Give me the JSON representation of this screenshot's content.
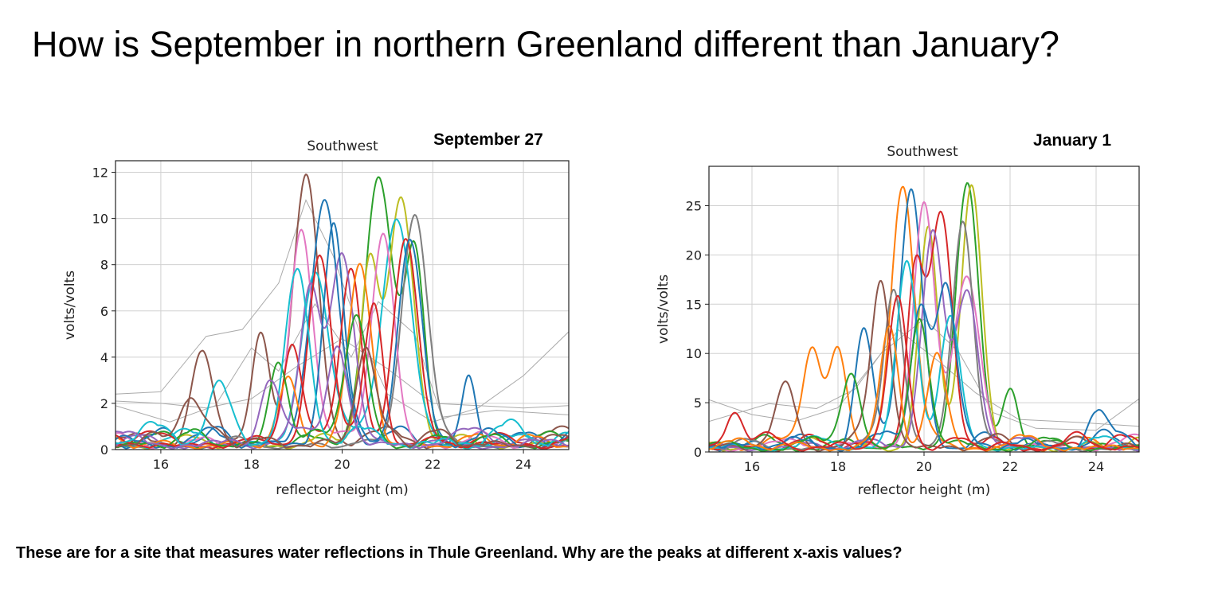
{
  "page": {
    "title": "How is September in northern Greenland different than January?",
    "footer": "These are for a site that measures water reflections in  Thule Greenland. Why are the peaks at different x-axis values?"
  },
  "palette": [
    "#1f77b4",
    "#ff7f0e",
    "#2ca02c",
    "#d62728",
    "#9467bd",
    "#8c564b",
    "#e377c2",
    "#7f7f7f",
    "#bcbd22",
    "#17becf"
  ],
  "chart_data": [
    {
      "type": "line",
      "title": "Southwest",
      "date_label": "September 27",
      "xlabel": "reflector height (m)",
      "ylabel": "volts/volts",
      "xlim": [
        15,
        25
      ],
      "ylim": [
        0,
        12.5
      ],
      "xticks": [
        16,
        18,
        20,
        22,
        24
      ],
      "yticks": [
        0,
        2,
        4,
        6,
        8,
        10,
        12
      ],
      "grid": true,
      "series": [
        {
          "color": "#8c564b",
          "peaks": [
            [
              19.2,
              11.5,
              0.28
            ],
            [
              18.2,
              4.9,
              0.2
            ],
            [
              16.9,
              3.6,
              0.22
            ]
          ],
          "base": 0.9
        },
        {
          "color": "#2ca02c",
          "peaks": [
            [
              20.8,
              11.5,
              0.3
            ],
            [
              21.6,
              8.2,
              0.22
            ]
          ],
          "base": 0.7
        },
        {
          "color": "#bcbd22",
          "peaks": [
            [
              21.3,
              10.7,
              0.28
            ],
            [
              20.6,
              7.8,
              0.2
            ]
          ],
          "base": 0.6
        },
        {
          "color": "#1f77b4",
          "peaks": [
            [
              19.6,
              10.4,
              0.3
            ],
            [
              22.8,
              3.0,
              0.15
            ]
          ],
          "base": 1.0
        },
        {
          "color": "#7f7f7f",
          "peaks": [
            [
              21.6,
              10.1,
              0.28
            ]
          ],
          "base": 0.5
        },
        {
          "color": "#17becf",
          "peaks": [
            [
              21.2,
              9.8,
              0.32
            ],
            [
              19.4,
              7.5,
              0.3
            ]
          ],
          "base": 0.8
        },
        {
          "color": "#e377c2",
          "peaks": [
            [
              19.1,
              9.4,
              0.25
            ],
            [
              20.9,
              9.2,
              0.25
            ]
          ],
          "base": 0.7
        },
        {
          "color": "#d62728",
          "peaks": [
            [
              21.4,
              8.9,
              0.26
            ],
            [
              20.2,
              7.6,
              0.22
            ],
            [
              18.9,
              4.4,
              0.2
            ]
          ],
          "base": 0.8
        },
        {
          "color": "#9467bd",
          "peaks": [
            [
              20.0,
              8.4,
              0.26
            ],
            [
              19.3,
              6.6,
              0.22
            ]
          ],
          "base": 0.6
        },
        {
          "color": "#ff7f0e",
          "peaks": [
            [
              20.4,
              7.7,
              0.25
            ],
            [
              18.8,
              2.4,
              0.2
            ]
          ],
          "base": 0.7
        },
        {
          "color": "#1f77b4",
          "peaks": [
            [
              19.8,
              9.2,
              0.22
            ],
            [
              21.5,
              8.9,
              0.26
            ]
          ],
          "base": 0.9
        },
        {
          "color": "#2ca02c",
          "peaks": [
            [
              18.6,
              3.7,
              0.2
            ],
            [
              20.3,
              5.5,
              0.25
            ]
          ],
          "base": 0.8
        },
        {
          "color": "#d62728",
          "peaks": [
            [
              19.5,
              8.2,
              0.24
            ],
            [
              20.7,
              6.2,
              0.2
            ]
          ],
          "base": 0.7
        },
        {
          "color": "#17becf",
          "peaks": [
            [
              19.0,
              6.8,
              0.25
            ],
            [
              17.3,
              2.6,
              0.25
            ]
          ],
          "base": 1.2
        },
        {
          "color": "#9467bd",
          "peaks": [
            [
              19.9,
              4.3,
              0.22
            ],
            [
              18.4,
              2.7,
              0.2
            ]
          ],
          "base": 0.9
        },
        {
          "color": "#8c564b",
          "peaks": [
            [
              20.5,
              4.0,
              0.2
            ],
            [
              16.6,
              1.9,
              0.2
            ]
          ],
          "base": 1.0
        }
      ],
      "thin_series": [
        {
          "color": "#aaaaaa",
          "points": [
            [
              15.0,
              2.4
            ],
            [
              16.0,
              2.5
            ],
            [
              17.0,
              4.9
            ],
            [
              17.8,
              5.2
            ],
            [
              18.6,
              7.2
            ],
            [
              19.2,
              10.8
            ],
            [
              19.8,
              8.4
            ],
            [
              20.4,
              5.0
            ],
            [
              21.0,
              2.4
            ],
            [
              22.0,
              1.2
            ],
            [
              23.0,
              1.8
            ],
            [
              24.0,
              3.2
            ],
            [
              25.0,
              5.1
            ]
          ]
        },
        {
          "color": "#aaaaaa",
          "points": [
            [
              15.0,
              2.1
            ],
            [
              16.0,
              2.0
            ],
            [
              17.0,
              1.8
            ],
            [
              18.0,
              2.2
            ],
            [
              19.0,
              3.6
            ],
            [
              20.0,
              4.8
            ],
            [
              21.0,
              3.5
            ],
            [
              22.0,
              2.0
            ],
            [
              23.0,
              1.9
            ],
            [
              24.0,
              1.8
            ],
            [
              25.0,
              1.9
            ]
          ]
        },
        {
          "color": "#aaaaaa",
          "points": [
            [
              15.0,
              1.9
            ],
            [
              16.2,
              1.2
            ],
            [
              17.2,
              1.9
            ],
            [
              18.0,
              4.4
            ],
            [
              18.6,
              3.4
            ],
            [
              19.4,
              6.3
            ],
            [
              20.2,
              4.0
            ],
            [
              20.8,
              6.4
            ],
            [
              21.6,
              5.0
            ],
            [
              22.2,
              1.4
            ],
            [
              23.4,
              1.7
            ],
            [
              25.0,
              1.5
            ]
          ]
        }
      ]
    },
    {
      "type": "line",
      "title": "Southwest",
      "date_label": "January 1",
      "xlabel": "reflector height (m)",
      "ylabel": "volts/volts",
      "xlim": [
        15,
        25
      ],
      "ylim": [
        0,
        29
      ],
      "xticks": [
        16,
        18,
        20,
        22,
        24
      ],
      "yticks": [
        0,
        5,
        10,
        15,
        20,
        25
      ],
      "grid": true,
      "series": [
        {
          "color": "#ff7f0e",
          "peaks": [
            [
              19.5,
              26.6,
              0.26
            ],
            [
              17.4,
              10.2,
              0.22
            ],
            [
              18.0,
              10.1,
              0.2
            ]
          ],
          "base": 1.5
        },
        {
          "color": "#2ca02c",
          "peaks": [
            [
              21.0,
              25.8,
              0.26
            ],
            [
              22.0,
              6.3,
              0.18
            ]
          ],
          "base": 1.6
        },
        {
          "color": "#bcbd22",
          "peaks": [
            [
              21.1,
              25.6,
              0.24
            ],
            [
              20.1,
              22.2,
              0.22
            ]
          ],
          "base": 1.4
        },
        {
          "color": "#1f77b4",
          "peaks": [
            [
              19.7,
              25.5,
              0.26
            ],
            [
              18.6,
              11.2,
              0.2
            ]
          ],
          "base": 2.0
        },
        {
          "color": "#e377c2",
          "peaks": [
            [
              20.0,
              25.1,
              0.24
            ],
            [
              21.0,
              16.3,
              0.3
            ]
          ],
          "base": 1.6
        },
        {
          "color": "#7f7f7f",
          "peaks": [
            [
              20.9,
              23.2,
              0.24
            ],
            [
              19.3,
              16.0,
              0.22
            ]
          ],
          "base": 1.3
        },
        {
          "color": "#d62728",
          "peaks": [
            [
              20.4,
              23.0,
              0.25
            ],
            [
              19.8,
              18.0,
              0.2
            ]
          ],
          "base": 1.7
        },
        {
          "color": "#9467bd",
          "peaks": [
            [
              20.2,
              22.0,
              0.25
            ],
            [
              21.0,
              15.8,
              0.26
            ]
          ],
          "base": 1.4
        },
        {
          "color": "#8c564b",
          "peaks": [
            [
              19.0,
              16.6,
              0.22
            ],
            [
              16.8,
              5.8,
              0.22
            ]
          ],
          "base": 1.8
        },
        {
          "color": "#17becf",
          "peaks": [
            [
              19.6,
              19.0,
              0.24
            ],
            [
              20.6,
              12.5,
              0.22
            ]
          ],
          "base": 1.5
        },
        {
          "color": "#1f77b4",
          "peaks": [
            [
              20.5,
              16.5,
              0.24
            ],
            [
              19.9,
              14.0,
              0.2
            ],
            [
              24.0,
              3.2,
              0.2
            ]
          ],
          "base": 1.9
        },
        {
          "color": "#2ca02c",
          "peaks": [
            [
              19.9,
              13.1,
              0.22
            ],
            [
              18.3,
              7.7,
              0.22
            ]
          ],
          "base": 1.4
        },
        {
          "color": "#ff7f0e",
          "peaks": [
            [
              20.3,
              9.4,
              0.22
            ],
            [
              19.2,
              11.5,
              0.2
            ]
          ],
          "base": 1.6
        },
        {
          "color": "#d62728",
          "peaks": [
            [
              19.4,
              14.7,
              0.22
            ],
            [
              15.6,
              3.6,
              0.2
            ]
          ],
          "base": 1.8
        }
      ],
      "thin_series": [
        {
          "color": "#aaaaaa",
          "points": [
            [
              15.0,
              5.3
            ],
            [
              16.0,
              3.8
            ],
            [
              17.0,
              3.1
            ],
            [
              18.0,
              4.5
            ],
            [
              19.0,
              10.0
            ],
            [
              20.0,
              13.5
            ],
            [
              20.8,
              10.2
            ],
            [
              21.6,
              4.0
            ],
            [
              22.6,
              2.4
            ],
            [
              24.0,
              2.2
            ],
            [
              25.0,
              5.4
            ]
          ]
        },
        {
          "color": "#aaaaaa",
          "points": [
            [
              15.0,
              3.1
            ],
            [
              16.4,
              4.9
            ],
            [
              17.5,
              4.4
            ],
            [
              18.4,
              6.4
            ],
            [
              19.4,
              12.4
            ],
            [
              20.4,
              9.0
            ],
            [
              21.2,
              6.0
            ],
            [
              22.2,
              3.3
            ],
            [
              23.6,
              3.0
            ],
            [
              25.0,
              2.6
            ]
          ]
        }
      ]
    }
  ]
}
